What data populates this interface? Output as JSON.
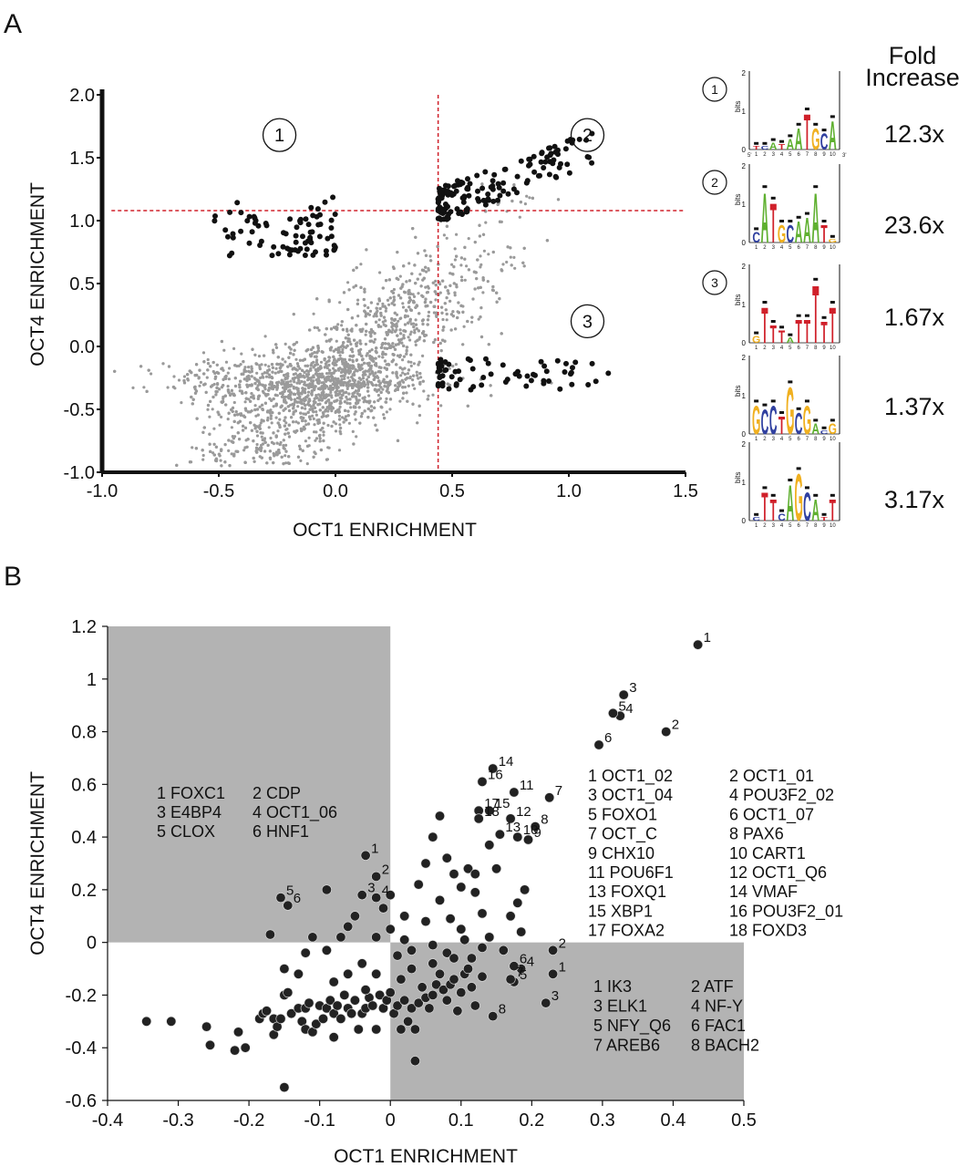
{
  "panel_a_label": "A",
  "panel_b_label": "B",
  "fold_header": [
    "Fold",
    "Increase"
  ],
  "chart_data": [
    {
      "type": "scatter",
      "panel": "A",
      "xlabel": "OCT1 ENRICHMENT",
      "ylabel": "OCT4 ENRICHMENT",
      "xlim": [
        -1.0,
        1.5
      ],
      "ylim": [
        -1.0,
        2.0
      ],
      "xticks": [
        "-1.0",
        "-0.5",
        "0.0",
        "0.5",
        "1.0",
        "1.5"
      ],
      "yticks": [
        "-1.0",
        "-0.5",
        "0.0",
        "0.5",
        "1.0",
        "1.5",
        "2.0"
      ],
      "thresholds": {
        "x": 0.44,
        "y": 1.08
      },
      "threshold_color": "#d0202a",
      "background_color": "#9a9a9a",
      "highlight_color": "#111111",
      "regions": [
        {
          "label": "1",
          "x": -0.24,
          "y": 1.68
        },
        {
          "label": "2",
          "x": 1.08,
          "y": 1.68
        },
        {
          "label": "3",
          "x": 1.08,
          "y": 0.2
        }
      ],
      "highlighted_groups": [
        {
          "region": "1",
          "x_range": [
            -0.55,
            0.0
          ],
          "y_range": [
            0.72,
            1.22
          ],
          "count": 80
        },
        {
          "region": "2",
          "x_range": [
            0.44,
            1.1
          ],
          "y_range": [
            1.05,
            1.8
          ],
          "count": 150
        },
        {
          "region": "3",
          "x_range": [
            0.44,
            1.17
          ],
          "y_range": [
            -0.38,
            0.03
          ],
          "count": 70
        }
      ]
    },
    {
      "type": "scatter",
      "panel": "B",
      "xlabel": "OCT1 ENRICHMENT",
      "ylabel": "OCT4 ENRICHMENT",
      "xlim": [
        -0.4,
        0.5
      ],
      "ylim": [
        -0.6,
        1.2
      ],
      "xticks": [
        "-0.4",
        "-0.3",
        "-0.2",
        "-0.1",
        "0",
        "0.1",
        "0.2",
        "0.3",
        "0.4",
        "0.5"
      ],
      "yticks": [
        "-0.6",
        "-0.4",
        "-0.2",
        "0",
        "0.2",
        "0.4",
        "0.6",
        "0.8",
        "1",
        "1.2"
      ],
      "shaded_color": "#b3b3b3",
      "point_color": "#222222",
      "labeled_points": [
        {
          "label": "1",
          "x": 0.435,
          "y": 1.13
        },
        {
          "label": "2",
          "x": 0.39,
          "y": 0.8
        },
        {
          "label": "3",
          "x": 0.33,
          "y": 0.94
        },
        {
          "label": "4",
          "x": 0.325,
          "y": 0.86
        },
        {
          "label": "5",
          "x": 0.315,
          "y": 0.87
        },
        {
          "label": "6",
          "x": 0.295,
          "y": 0.75
        },
        {
          "label": "7",
          "x": 0.225,
          "y": 0.55
        },
        {
          "label": "8",
          "x": 0.205,
          "y": 0.44
        },
        {
          "label": "9",
          "x": 0.195,
          "y": 0.39
        },
        {
          "label": "10",
          "x": 0.18,
          "y": 0.4
        },
        {
          "label": "11",
          "x": 0.175,
          "y": 0.57
        },
        {
          "label": "12",
          "x": 0.17,
          "y": 0.47
        },
        {
          "label": "13",
          "x": 0.155,
          "y": 0.41
        },
        {
          "label": "14",
          "x": 0.145,
          "y": 0.66
        },
        {
          "label": "15",
          "x": 0.14,
          "y": 0.5
        },
        {
          "label": "16",
          "x": 0.13,
          "y": 0.61
        },
        {
          "label": "17",
          "x": 0.125,
          "y": 0.5
        },
        {
          "label": "18",
          "x": 0.125,
          "y": 0.47
        },
        {
          "label": "1",
          "x": -0.035,
          "y": 0.33
        },
        {
          "label": "2",
          "x": -0.02,
          "y": 0.25
        },
        {
          "label": "3",
          "x": -0.04,
          "y": 0.18
        },
        {
          "label": "4",
          "x": -0.02,
          "y": 0.17
        },
        {
          "label": "5",
          "x": -0.155,
          "y": 0.17
        },
        {
          "label": "6",
          "x": -0.145,
          "y": 0.14
        },
        {
          "label": "1",
          "x": 0.23,
          "y": -0.12
        },
        {
          "label": "2",
          "x": 0.23,
          "y": -0.03
        },
        {
          "label": "3",
          "x": 0.22,
          "y": -0.23
        },
        {
          "label": "4",
          "x": 0.185,
          "y": -0.1
        },
        {
          "label": "5",
          "x": 0.175,
          "y": -0.15
        },
        {
          "label": "6",
          "x": 0.175,
          "y": -0.09
        },
        {
          "label": "7",
          "x": 0.17,
          "y": -0.14
        },
        {
          "label": "8",
          "x": 0.145,
          "y": -0.28
        }
      ],
      "points": [
        [
          -0.345,
          -0.3
        ],
        [
          -0.31,
          -0.3
        ],
        [
          -0.26,
          -0.32
        ],
        [
          -0.255,
          -0.39
        ],
        [
          -0.22,
          -0.41
        ],
        [
          -0.215,
          -0.34
        ],
        [
          -0.205,
          -0.4
        ],
        [
          -0.185,
          -0.29
        ],
        [
          -0.18,
          -0.27
        ],
        [
          -0.175,
          -0.26
        ],
        [
          -0.165,
          -0.29
        ],
        [
          -0.165,
          -0.35
        ],
        [
          -0.16,
          -0.32
        ],
        [
          -0.155,
          -0.29
        ],
        [
          -0.15,
          -0.55
        ],
        [
          -0.15,
          -0.2
        ],
        [
          -0.145,
          -0.19
        ],
        [
          -0.14,
          -0.27
        ],
        [
          -0.13,
          -0.25
        ],
        [
          -0.125,
          -0.3
        ],
        [
          -0.12,
          -0.33
        ],
        [
          -0.12,
          -0.25
        ],
        [
          -0.115,
          -0.23
        ],
        [
          -0.11,
          -0.34
        ],
        [
          -0.105,
          -0.31
        ],
        [
          -0.1,
          -0.24
        ],
        [
          -0.095,
          -0.29
        ],
        [
          -0.09,
          -0.25
        ],
        [
          -0.085,
          -0.22
        ],
        [
          -0.08,
          -0.27
        ],
        [
          -0.08,
          -0.36
        ],
        [
          -0.075,
          -0.24
        ],
        [
          -0.07,
          -0.29
        ],
        [
          -0.065,
          -0.2
        ],
        [
          -0.06,
          -0.25
        ],
        [
          -0.055,
          -0.27
        ],
        [
          -0.05,
          -0.22
        ],
        [
          -0.045,
          -0.33
        ],
        [
          -0.04,
          -0.27
        ],
        [
          -0.035,
          -0.25
        ],
        [
          -0.03,
          -0.21
        ],
        [
          -0.025,
          -0.24
        ],
        [
          -0.02,
          -0.33
        ],
        [
          -0.015,
          -0.2
        ],
        [
          -0.01,
          -0.25
        ],
        [
          -0.005,
          -0.22
        ],
        [
          0.0,
          -0.19
        ],
        [
          0.005,
          -0.27
        ],
        [
          0.01,
          -0.24
        ],
        [
          0.015,
          -0.33
        ],
        [
          0.02,
          -0.22
        ],
        [
          0.025,
          -0.3
        ],
        [
          0.03,
          -0.25
        ],
        [
          0.035,
          -0.33
        ],
        [
          0.035,
          -0.45
        ],
        [
          0.04,
          -0.23
        ],
        [
          0.045,
          -0.17
        ],
        [
          0.05,
          -0.21
        ],
        [
          0.055,
          -0.25
        ],
        [
          0.06,
          -0.2
        ],
        [
          0.065,
          -0.16
        ],
        [
          0.07,
          -0.12
        ],
        [
          0.075,
          -0.18
        ],
        [
          0.08,
          -0.22
        ],
        [
          0.085,
          -0.16
        ],
        [
          0.09,
          -0.14
        ],
        [
          0.095,
          -0.26
        ],
        [
          0.1,
          -0.19
        ],
        [
          0.105,
          -0.12
        ],
        [
          0.11,
          -0.1
        ],
        [
          0.115,
          -0.17
        ],
        [
          0.12,
          -0.24
        ],
        [
          0.13,
          -0.13
        ],
        [
          -0.17,
          0.03
        ],
        [
          -0.12,
          -0.04
        ],
        [
          -0.11,
          0.02
        ],
        [
          -0.09,
          -0.03
        ],
        [
          -0.07,
          0.02
        ],
        [
          -0.06,
          0.06
        ],
        [
          -0.04,
          -0.08
        ],
        [
          -0.02,
          0.02
        ],
        [
          0.0,
          0.05
        ],
        [
          0.01,
          -0.05
        ],
        [
          0.02,
          0.01
        ],
        [
          0.03,
          -0.03
        ],
        [
          0.05,
          0.08
        ],
        [
          0.06,
          -0.01
        ],
        [
          0.07,
          0.16
        ],
        [
          0.08,
          -0.04
        ],
        [
          0.085,
          0.09
        ],
        [
          0.1,
          0.05
        ],
        [
          0.105,
          0.01
        ],
        [
          0.11,
          0.28
        ],
        [
          0.115,
          -0.06
        ],
        [
          0.12,
          0.26
        ],
        [
          0.13,
          0.11
        ],
        [
          0.14,
          0.02
        ],
        [
          0.15,
          0.28
        ],
        [
          0.16,
          -0.03
        ],
        [
          0.17,
          0.1
        ],
        [
          0.18,
          0.15
        ],
        [
          0.185,
          0.04
        ],
        [
          0.19,
          0.2
        ],
        [
          0.07,
          0.48
        ],
        [
          0.06,
          0.4
        ],
        [
          0.08,
          0.32
        ],
        [
          0.09,
          0.26
        ],
        [
          0.1,
          0.21
        ],
        [
          0.12,
          0.19
        ],
        [
          0.14,
          0.37
        ],
        [
          0.0,
          0.18
        ],
        [
          -0.01,
          0.13
        ],
        [
          0.02,
          0.1
        ],
        [
          0.04,
          0.22
        ],
        [
          0.05,
          0.3
        ],
        [
          -0.05,
          0.1
        ],
        [
          -0.09,
          0.2
        ],
        [
          0.03,
          -0.1
        ],
        [
          0.06,
          -0.08
        ],
        [
          0.09,
          -0.06
        ],
        [
          0.13,
          -0.02
        ],
        [
          -0.13,
          -0.12
        ],
        [
          -0.08,
          -0.15
        ],
        [
          -0.02,
          -0.12
        ],
        [
          0.015,
          -0.14
        ],
        [
          -0.15,
          -0.1
        ],
        [
          -0.035,
          -0.18
        ],
        [
          -0.06,
          -0.12
        ]
      ]
    }
  ],
  "panel_b_top_legend": [
    [
      "1 FOXC1",
      "2 CDP"
    ],
    [
      "3 E4BP4",
      "4 OCT1_06"
    ],
    [
      "5 CLOX",
      "6 HNF1"
    ]
  ],
  "panel_b_right_legend": [
    [
      "1 OCT1_02",
      "2 OCT1_01"
    ],
    [
      "3 OCT1_04",
      "4 POU3F2_02"
    ],
    [
      "5 FOXO1",
      "6 OCT1_07"
    ],
    [
      "7 OCT_C",
      "8 PAX6"
    ],
    [
      "9 CHX10",
      "10 CART1"
    ],
    [
      "11 POU6F1",
      "12 OCT1_Q6"
    ],
    [
      "13 FOXQ1",
      "14 VMAF"
    ],
    [
      "15 XBP1",
      "16 POU3F2_01"
    ],
    [
      "17 FOXA2",
      "18 FOXD3"
    ]
  ],
  "panel_b_bottom_legend": [
    [
      "1 IK3",
      "2 ATF"
    ],
    [
      "3 ELK1",
      "4 NF-Y"
    ],
    [
      "5 NFY_Q6",
      "6 FAC1"
    ],
    [
      "7 AREB6",
      "8 BACH2"
    ]
  ],
  "motif_logos": [
    {
      "circle": "1",
      "fold": "12.3x",
      "ylabel": "bits",
      "yticks": [
        "0",
        "1",
        "2"
      ],
      "positions": [
        "1",
        "2",
        "3",
        "4",
        "5",
        "6",
        "7",
        "8",
        "9",
        "10"
      ],
      "end_labels": [
        "5'",
        "3'"
      ]
    },
    {
      "circle": "2",
      "fold": "23.6x",
      "ylabel": "bits",
      "yticks": [
        "0",
        "1",
        "2"
      ],
      "positions": [
        "1",
        "2",
        "3",
        "4",
        "5",
        "6",
        "7",
        "8",
        "9",
        "10"
      ]
    },
    {
      "circle": "3",
      "fold": "1.67x",
      "ylabel": "bits",
      "yticks": [
        "0",
        "1",
        "2"
      ],
      "positions": [
        "1",
        "2",
        "3",
        "4",
        "5",
        "6",
        "7",
        "8",
        "9",
        "10"
      ]
    },
    {
      "circle": "",
      "fold": "1.37x",
      "ylabel": "bits",
      "yticks": [
        "0",
        "1",
        "2"
      ],
      "positions": [
        "1",
        "2",
        "3",
        "4",
        "5",
        "6",
        "7",
        "8",
        "9",
        "10"
      ]
    },
    {
      "circle": "",
      "fold": "3.17x",
      "ylabel": "bits",
      "yticks": [
        "0",
        "1",
        "2"
      ],
      "positions": [
        "1",
        "2",
        "3",
        "4",
        "5",
        "6",
        "7",
        "8",
        "9",
        "10"
      ]
    }
  ],
  "logo_colors": {
    "A": "#5fb030",
    "C": "#3040a0",
    "G": "#f0b020",
    "T": "#d0202a"
  }
}
